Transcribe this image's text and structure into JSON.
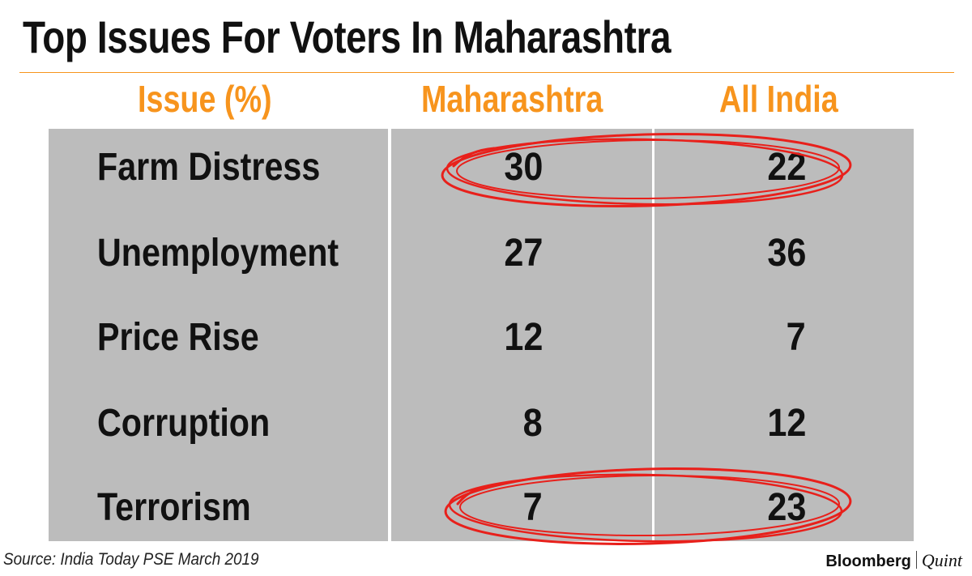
{
  "chart_data": {
    "type": "table",
    "title": "Top Issues For Voters In Maharashtra",
    "columns": [
      "Issue (%)",
      "Maharashtra",
      "All India"
    ],
    "rows": [
      {
        "issue": "Farm Distress",
        "maharashtra": "30",
        "all_india": "22",
        "highlighted": true
      },
      {
        "issue": "Unemployment",
        "maharashtra": "27",
        "all_india": "36",
        "highlighted": false
      },
      {
        "issue": "Price Rise",
        "maharashtra": "12",
        "all_india": "7",
        "highlighted": false
      },
      {
        "issue": "Corruption",
        "maharashtra": "8",
        "all_india": "12",
        "highlighted": false
      },
      {
        "issue": "Terrorism",
        "maharashtra": "7",
        "all_india": "23",
        "highlighted": true
      }
    ]
  },
  "source": "Source: India Today PSE March 2019",
  "brand": {
    "primary": "Bloomberg",
    "secondary": "Quint"
  },
  "colors": {
    "header": "#f7941d",
    "panel": "#bcbcbc",
    "highlight": "#e8201b",
    "text": "#111111"
  }
}
